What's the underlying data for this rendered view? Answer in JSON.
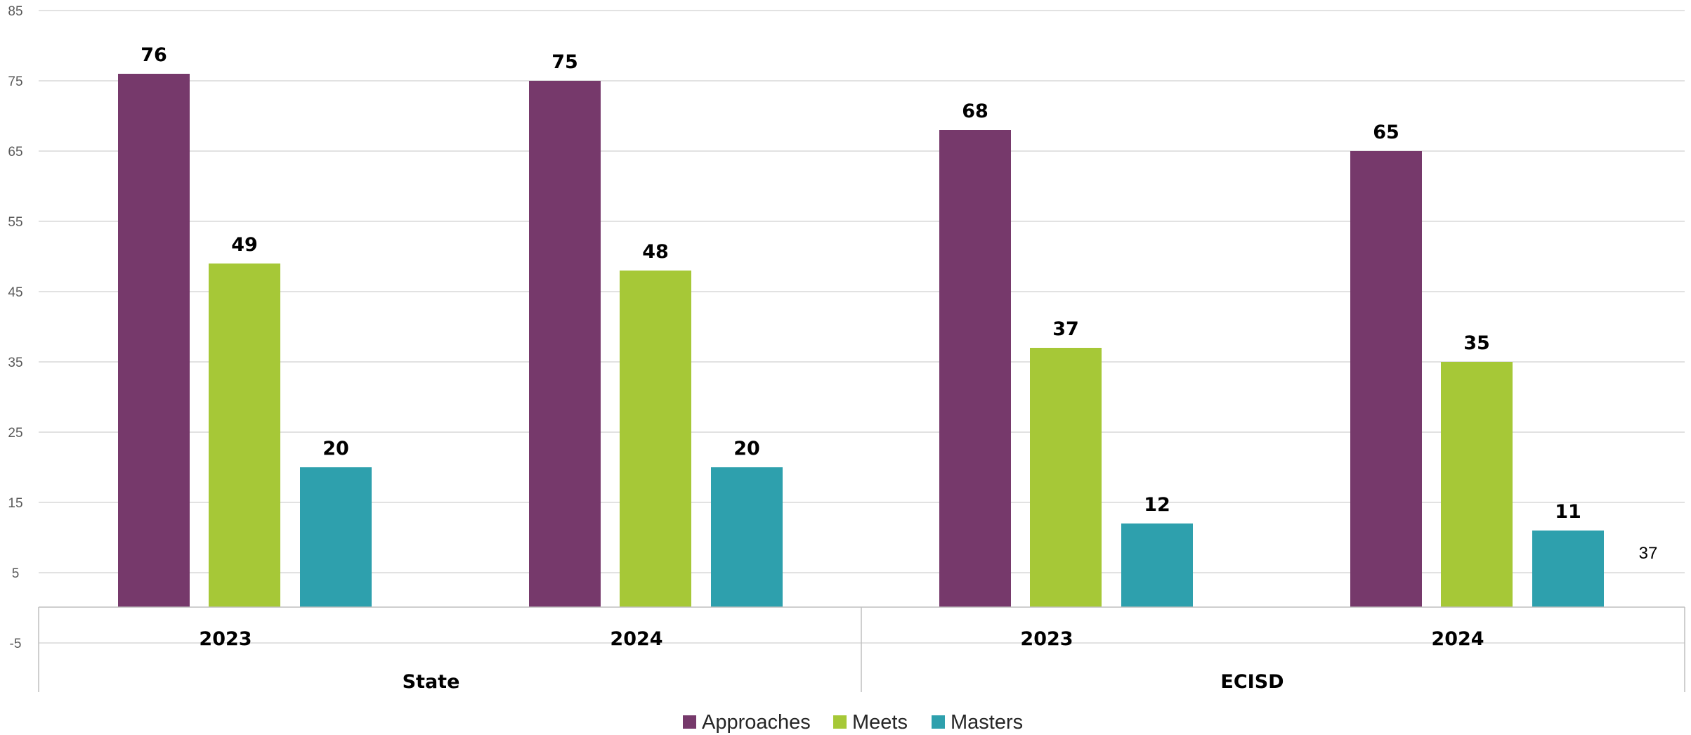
{
  "chart_data": {
    "type": "bar",
    "groups": [
      {
        "name": "State",
        "categories": [
          "2023",
          "2024"
        ]
      },
      {
        "name": "ECISD",
        "categories": [
          "2023",
          "2024"
        ]
      }
    ],
    "categories": [
      "2023",
      "2024",
      "2023",
      "2024"
    ],
    "series": [
      {
        "name": "Approaches",
        "color": "#76396B",
        "values": [
          76,
          75,
          68,
          65
        ]
      },
      {
        "name": "Meets",
        "color": "#A6C837",
        "values": [
          49,
          48,
          37,
          35
        ]
      },
      {
        "name": "Masters",
        "color": "#2EA0AD",
        "values": [
          20,
          20,
          12,
          11
        ]
      }
    ],
    "yticks": [
      "85",
      "75",
      "65",
      "55",
      "45",
      "35",
      "25",
      "15",
      "5",
      "-5"
    ],
    "ylim": [
      -5,
      85
    ],
    "grid": true,
    "legend_position": "bottom",
    "stray_label": "37"
  }
}
